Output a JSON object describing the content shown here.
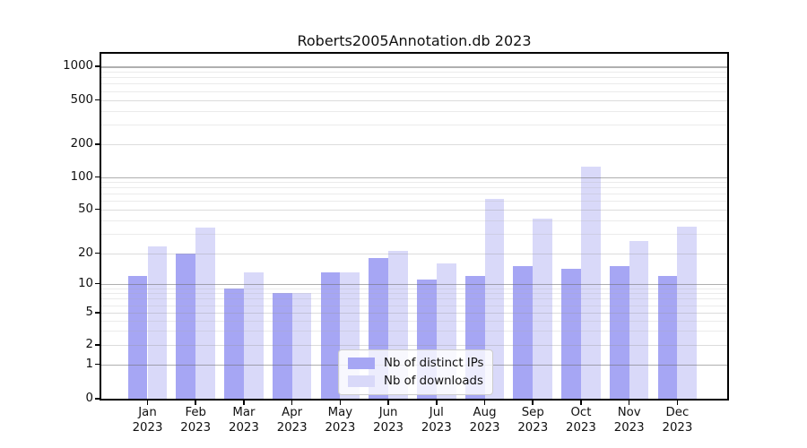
{
  "title": "Roberts2005Annotation.db 2023",
  "legend": {
    "items": [
      {
        "label": "Nb of distinct IPs",
        "color": "#a6a6f4"
      },
      {
        "label": "Nb of downloads",
        "color": "#d9d9f9"
      }
    ]
  },
  "y_axis": {
    "ticks": [
      {
        "value": 0,
        "label": "0"
      },
      {
        "value": 1,
        "label": "1"
      },
      {
        "value": 2,
        "label": "2"
      },
      {
        "value": 5,
        "label": "5"
      },
      {
        "value": 10,
        "label": "10"
      },
      {
        "value": 20,
        "label": "20"
      },
      {
        "value": 50,
        "label": "50"
      },
      {
        "value": 100,
        "label": "100"
      },
      {
        "value": 200,
        "label": "200"
      },
      {
        "value": 500,
        "label": "500"
      },
      {
        "value": 1000,
        "label": "1000"
      }
    ]
  },
  "x_axis": {
    "ticks": [
      {
        "month": "Jan",
        "year": "2023"
      },
      {
        "month": "Feb",
        "year": "2023"
      },
      {
        "month": "Mar",
        "year": "2023"
      },
      {
        "month": "Apr",
        "year": "2023"
      },
      {
        "month": "May",
        "year": "2023"
      },
      {
        "month": "Jun",
        "year": "2023"
      },
      {
        "month": "Jul",
        "year": "2023"
      },
      {
        "month": "Aug",
        "year": "2023"
      },
      {
        "month": "Sep",
        "year": "2023"
      },
      {
        "month": "Oct",
        "year": "2023"
      },
      {
        "month": "Nov",
        "year": "2023"
      },
      {
        "month": "Dec",
        "year": "2023"
      }
    ]
  },
  "chart_data": {
    "type": "bar",
    "title": "Roberts2005Annotation.db 2023",
    "categories": [
      "Jan 2023",
      "Feb 2023",
      "Mar 2023",
      "Apr 2023",
      "May 2023",
      "Jun 2023",
      "Jul 2023",
      "Aug 2023",
      "Sep 2023",
      "Oct 2023",
      "Nov 2023",
      "Dec 2023"
    ],
    "series": [
      {
        "name": "Nb of distinct IPs",
        "color": "#a6a6f4",
        "values": [
          12,
          20,
          9,
          8,
          13,
          18,
          11,
          12,
          15,
          14,
          15,
          12
        ]
      },
      {
        "name": "Nb of downloads",
        "color": "#d9d9f9",
        "values": [
          23,
          34,
          13,
          8,
          13,
          21,
          16,
          63,
          41,
          125,
          26,
          35
        ]
      }
    ],
    "yscale": "symlog",
    "y_ticks": [
      0,
      1,
      2,
      5,
      10,
      20,
      50,
      100,
      200,
      500,
      1000
    ],
    "ylim": [
      0,
      1150
    ],
    "grid": true,
    "legend_position": "lower center"
  }
}
